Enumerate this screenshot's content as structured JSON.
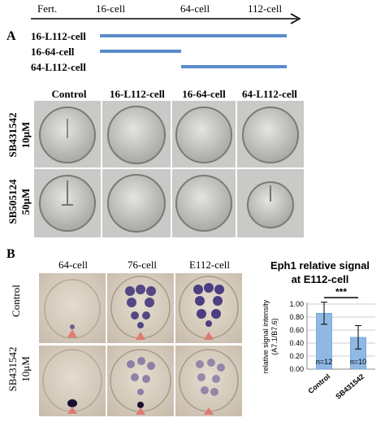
{
  "panelA": {
    "letter": "A",
    "timeline": {
      "stages": [
        "Fert.",
        "16-cell",
        "64-cell",
        "112-cell"
      ]
    },
    "treatments": [
      "16-L112-cell",
      "16-64-cell",
      "64-L112-cell"
    ],
    "columns": [
      "Control",
      "16-L112-cell",
      "16-64-cell",
      "64-L112-cell"
    ],
    "rows": [
      {
        "drug": "SB431542",
        "conc": "10μM"
      },
      {
        "drug": "SB505124",
        "conc": "50μM"
      }
    ],
    "bar_color": "#5b8ccb"
  },
  "panelB": {
    "letter": "B",
    "columns": [
      "64-cell",
      "76-cell",
      "E112-cell"
    ],
    "rows": [
      {
        "label": "Control"
      },
      {
        "label": "SB431542",
        "conc": "10μM"
      }
    ],
    "arrow_color": "#e07a72",
    "stain_color": "#3d2f7a"
  },
  "chart_data": {
    "type": "bar",
    "title": "Eph1 relative signal at E112-cell",
    "title_line1": "Eph1 relative signal",
    "title_line2": "at E112-cell",
    "ylabel": "relative signal intensity",
    "ylabel_sub": "(A7.1/B7.6)",
    "categories": [
      "Control",
      "SB431542"
    ],
    "values": [
      0.86,
      0.49
    ],
    "errors": [
      0.17,
      0.18
    ],
    "n_labels": [
      "n=12",
      "n=10"
    ],
    "significance": "***",
    "ylim": [
      0,
      1.0
    ],
    "yticks": [
      "0.00",
      "0.20",
      "0.40",
      "0.60",
      "0.80",
      "1.00"
    ],
    "grid": true,
    "bar_color": "#8fb8e4"
  }
}
